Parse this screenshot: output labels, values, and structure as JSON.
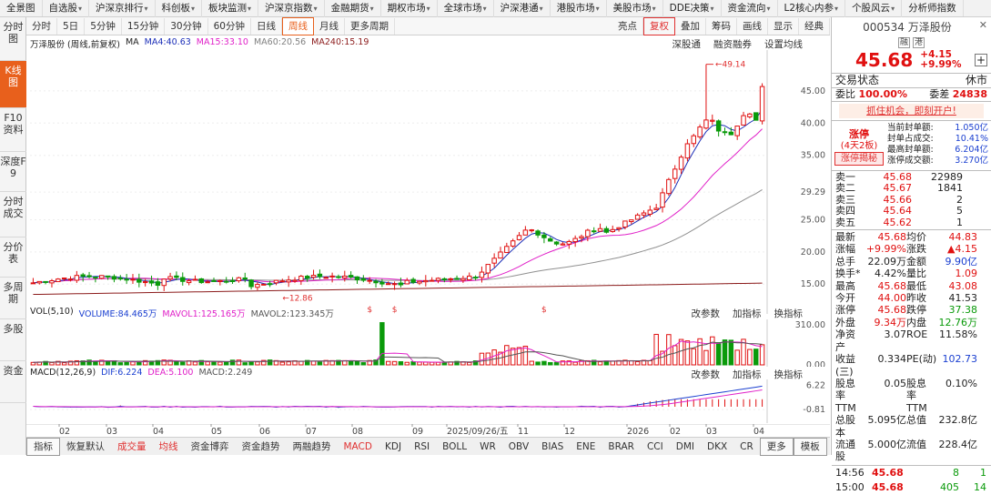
{
  "top_menu": [
    "全景图",
    "自选股",
    "沪深京排行",
    "科创板",
    "板块监测",
    "沪深京指数",
    "金融期货",
    "期权市场",
    "全球市场",
    "沪深港通",
    "港股市场",
    "美股市场",
    "DDE决策",
    "资金流向",
    "L2核心内参",
    "个股风云",
    "分析师指数"
  ],
  "left_tabs": [
    "分时图",
    "K线图",
    "F10资料",
    "深度F9",
    "分时成交",
    "分价表",
    "多周期",
    "多股",
    "资金"
  ],
  "toolbar": {
    "items": [
      "分时",
      "5日",
      "5分钟",
      "15分钟",
      "30分钟",
      "60分钟",
      "日线",
      "周线",
      "月线",
      "更多周期"
    ],
    "active": "周线",
    "right_items": [
      "亮点",
      "复权",
      "叠加",
      "筹码",
      "画线",
      "显示",
      "经典"
    ]
  },
  "kline": {
    "title": "万泽股份 (周线,前复权)",
    "ma_label": "MA",
    "ma": [
      {
        "name": "MA4:40.63",
        "color": "#1c2fb8"
      },
      {
        "name": "MA15:33.10",
        "color": "#e020c8"
      },
      {
        "name": "MA60:20.56",
        "color": "#808080"
      },
      {
        "name": "MA240:15.19",
        "color": "#8b1a1a"
      }
    ],
    "links": [
      "深股通",
      "融资融券",
      "设置均线"
    ],
    "yticks": [
      "45.00",
      "40.00",
      "35.00",
      "29.29",
      "25.00",
      "20.00",
      "15.00"
    ],
    "high_label": "49.14",
    "low_label": "12.86"
  },
  "vol": {
    "label": "VOL(5,10)",
    "v": "VOLUME:84.465万",
    "m1": "MAVOL1:125.165万",
    "m2": "MAVOL2:123.345万",
    "links": [
      "改参数",
      "加指标",
      "换指标"
    ],
    "yticks": [
      "310.00",
      "0.00"
    ]
  },
  "macd": {
    "label": "MACD(12,26,9)",
    "dif": "DIF:6.224",
    "dea": "DEA:5.100",
    "macd": "MACD:2.249",
    "links": [
      "改参数",
      "加指标",
      "换指标"
    ],
    "yticks": [
      "6.22",
      "-0.81"
    ]
  },
  "xaxis": [
    "02",
    "03",
    "04",
    "05",
    "06",
    "07",
    "08",
    "09",
    "2025/09/26/五",
    "11",
    "12",
    "2026",
    "02",
    "03",
    "04"
  ],
  "bottom_tabs": [
    "指标",
    "恢复默认",
    "成交量",
    "均线",
    "资金博弈",
    "资金趋势",
    "两融趋势",
    "MACD",
    "KDJ",
    "RSI",
    "BOLL",
    "WR",
    "OBV",
    "BIAS",
    "ENE",
    "BRAR",
    "CCI",
    "DMI",
    "DKX",
    "CR",
    "更多",
    "模板"
  ],
  "stock": {
    "code": "000534",
    "name": "万泽股份",
    "tags": [
      "融",
      "港"
    ],
    "price": "45.68",
    "change": "+4.15",
    "change_pct": "+9.99%",
    "trade_status_label": "交易状态",
    "trade_status": "休市",
    "wb_label": "委比",
    "wb": "100.00%",
    "wc_label": "委差",
    "wc": "24838",
    "promo": "抓住机会，即刻开户!",
    "limit_up": {
      "title": "涨停",
      "sub": "(4天2板)",
      "btn": "涨停揭秘",
      "lines": [
        [
          "当前封单额:",
          "1.050亿"
        ],
        [
          "封单占成交:",
          "10.41%"
        ],
        [
          "最高封单额:",
          "6.204亿"
        ],
        [
          "涨停成交额:",
          "3.270亿"
        ]
      ]
    },
    "sell": [
      [
        "卖一",
        "45.68",
        "22989"
      ],
      [
        "卖二",
        "45.67",
        "1841"
      ],
      [
        "卖三",
        "45.66",
        "2"
      ],
      [
        "卖四",
        "45.64",
        "5"
      ],
      [
        "卖五",
        "45.62",
        "1"
      ]
    ],
    "quote": [
      [
        "最新",
        "45.68",
        "均价",
        "44.83"
      ],
      [
        "涨幅",
        "+9.99%",
        "涨跌",
        "▲4.15"
      ],
      [
        "总手",
        "22.09万",
        "金额",
        "9.90亿"
      ],
      [
        "换手*",
        "4.42%",
        "量比",
        "1.09"
      ],
      [
        "最高",
        "45.68",
        "最低",
        "43.08"
      ],
      [
        "今开",
        "44.00",
        "昨收",
        "41.53"
      ],
      [
        "涨停",
        "45.68",
        "跌停",
        "37.38"
      ],
      [
        "外盘",
        "9.34万",
        "内盘",
        "12.76万"
      ],
      [
        "净资产",
        "3.07",
        "ROE",
        "11.58%"
      ],
      [
        "收益(三)",
        "0.334",
        "PE(动)",
        "102.73"
      ],
      [
        "股息率TTM",
        "0.05",
        "股息率TTM",
        "0.10%"
      ],
      [
        "总股本",
        "5.095亿",
        "总值",
        "232.8亿"
      ],
      [
        "流通股",
        "5.000亿",
        "流值",
        "228.4亿"
      ]
    ],
    "ticks": [
      [
        "14:56",
        "45.68",
        "8",
        "1"
      ],
      [
        "15:00",
        "45.68",
        "405",
        "14"
      ]
    ]
  },
  "colors": {
    "up": "#e01010",
    "down": "#0a9a0a",
    "accent": "#e8601c"
  }
}
